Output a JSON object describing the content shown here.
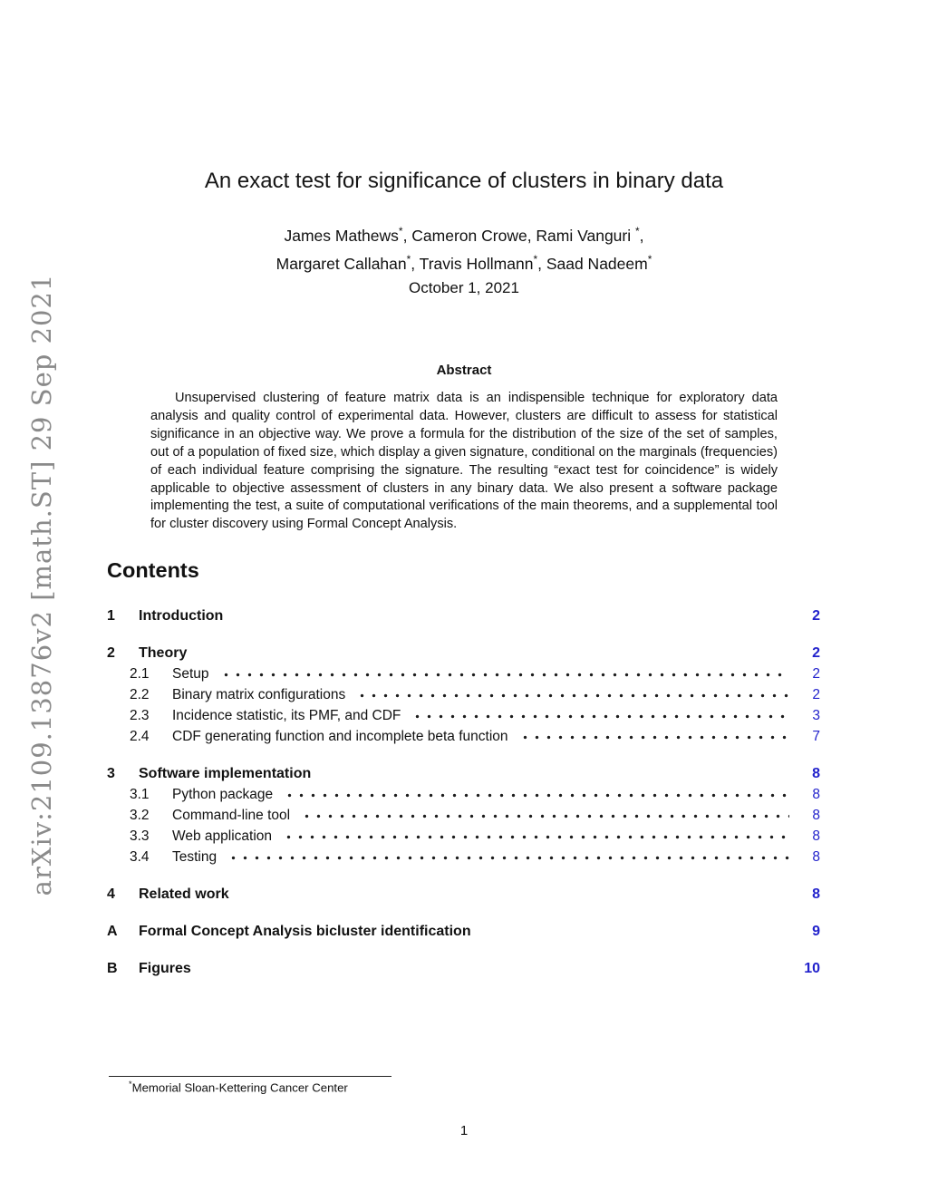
{
  "arxiv_stamp": "arXiv:2109.13876v2 [math.ST] 29 Sep 2021",
  "title": "An exact test for significance of clusters in binary data",
  "author_lines": [
    "James Mathews*, Cameron Crowe, Rami Vanguri *,",
    "Margaret Callahan*, Travis Hollmann*, Saad Nadeem*"
  ],
  "date": "October 1, 2021",
  "abstract": {
    "heading": "Abstract",
    "text": "Unsupervised clustering of feature matrix data is an indispensible technique for exploratory data analysis and quality control of experimental data. However, clusters are difficult to assess for statistical significance in an objective way. We prove a formula for the distribution of the size of the set of samples, out of a population of fixed size, which display a given signature, conditional on the marginals (frequencies) of each individual feature comprising the signature. The resulting “exact test for coincidence” is widely applicable to objective assessment of clusters in any binary data. We also present a software package implementing the test, a suite of computational verifications of the main theorems, and a supplemental tool for cluster discovery using Formal Concept Analysis."
  },
  "toc": {
    "heading": "Contents",
    "entries": [
      {
        "level": 1,
        "num": "1",
        "title": "Introduction",
        "page": "2"
      },
      {
        "level": 1,
        "num": "2",
        "title": "Theory",
        "page": "2"
      },
      {
        "level": 2,
        "num": "2.1",
        "title": "Setup",
        "page": "2"
      },
      {
        "level": 2,
        "num": "2.2",
        "title": "Binary matrix configurations",
        "page": "2"
      },
      {
        "level": 2,
        "num": "2.3",
        "title": "Incidence statistic, its PMF, and CDF",
        "page": "3"
      },
      {
        "level": 2,
        "num": "2.4",
        "title": "CDF generating function and incomplete beta function",
        "page": "7"
      },
      {
        "level": 1,
        "num": "3",
        "title": "Software implementation",
        "page": "8"
      },
      {
        "level": 2,
        "num": "3.1",
        "title": "Python package",
        "page": "8"
      },
      {
        "level": 2,
        "num": "3.2",
        "title": "Command-line tool",
        "page": "8"
      },
      {
        "level": 2,
        "num": "3.3",
        "title": "Web application",
        "page": "8"
      },
      {
        "level": 2,
        "num": "3.4",
        "title": "Testing",
        "page": "8"
      },
      {
        "level": 1,
        "num": "4",
        "title": "Related work",
        "page": "8"
      },
      {
        "level": 1,
        "num": "A",
        "title": "Formal Concept Analysis bicluster identification",
        "page": "9"
      },
      {
        "level": 1,
        "num": "B",
        "title": "Figures",
        "page": "10"
      }
    ]
  },
  "footnote": {
    "text": "*Memorial Sloan-Kettering Cancer Center"
  },
  "page_number": "1",
  "colors": {
    "link_blue": "#2222cc",
    "stamp_gray": "#8a8a8a",
    "text": "#111111"
  }
}
